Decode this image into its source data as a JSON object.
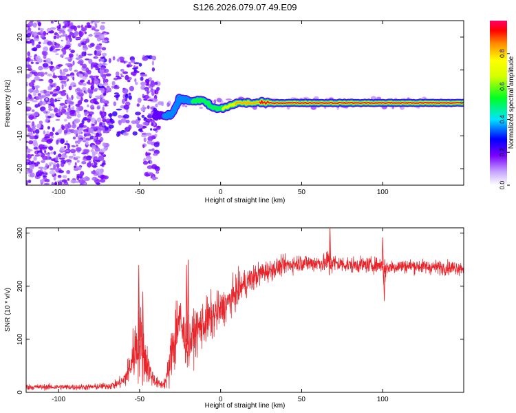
{
  "figure_title": "S126.2026.079.07.49.E09",
  "colors": {
    "snr_line": "#e8252b",
    "frame": "#000000",
    "background": "#ffffff"
  },
  "chart_data": [
    {
      "type": "heatmap",
      "title": "S126.2026.079.07.49.E09",
      "xlabel": "Height of straight line (km)",
      "ylabel": "Frequency (Hz)",
      "xlim": [
        -120,
        150
      ],
      "ylim": [
        -25,
        25
      ],
      "xticks": [
        -100,
        -50,
        0,
        50,
        100
      ],
      "xtick_labels": [
        "-100",
        "-50",
        "0",
        "50",
        "100"
      ],
      "yticks": [
        -20,
        -10,
        0,
        10,
        20
      ],
      "ytick_labels": [
        "-20",
        "-10",
        "0",
        "10",
        "20"
      ],
      "grid": false,
      "description_of_signal": "Scattered low-amplitude noise for heights below about -40 km; a coherent line near 0 Hz from about -40 km upward, reaching normalized amplitude ~1 above about 20 km",
      "ridge": {
        "x": [
          -40,
          -35,
          -30,
          -25,
          -20,
          -15,
          -10,
          -5,
          0,
          5,
          10,
          20,
          30,
          50,
          70,
          100,
          150
        ],
        "frequency_hz": [
          -3.5,
          -3.8,
          -3.5,
          1.5,
          0.5,
          0.8,
          0.5,
          -1.5,
          -1.8,
          -1.0,
          0,
          0,
          0,
          0,
          0,
          0,
          0
        ],
        "amplitude": [
          0.25,
          0.3,
          0.3,
          0.35,
          0.4,
          0.5,
          0.55,
          0.6,
          0.6,
          0.7,
          0.8,
          0.9,
          0.95,
          1.0,
          1.0,
          1.0,
          1.0
        ]
      },
      "colorbar": {
        "label": "Normalized spectral amplitude",
        "range": [
          0,
          1
        ],
        "ticks": [
          0.0,
          0.2,
          0.4,
          0.6,
          0.8
        ],
        "tick_labels": [
          "0.0",
          "0.2",
          "0.4",
          "0.6",
          "0.8"
        ]
      }
    },
    {
      "type": "line",
      "xlabel": "Height of straight line (km)",
      "ylabel": "SNR (10 * v/v)",
      "xlim": [
        -120,
        150
      ],
      "ylim": [
        0,
        310
      ],
      "xticks": [
        -100,
        -50,
        0,
        50,
        100
      ],
      "xtick_labels": [
        "-100",
        "-50",
        "0",
        "50",
        "100"
      ],
      "yticks": [
        0,
        100,
        200,
        300
      ],
      "ytick_labels": [
        "0",
        "100",
        "200",
        "300"
      ],
      "grid": false,
      "series": [
        {
          "name": "SNR",
          "x": [
            -120,
            -100,
            -80,
            -70,
            -65,
            -60,
            -57,
            -55,
            -52,
            -50,
            -48,
            -46,
            -44,
            -42,
            -40,
            -38,
            -36,
            -34,
            -32,
            -30,
            -28,
            -26,
            -24,
            -22,
            -20,
            -18,
            -16,
            -14,
            -12,
            -10,
            -8,
            -6,
            -4,
            -2,
            0,
            5,
            10,
            15,
            20,
            25,
            30,
            35,
            40,
            45,
            50,
            55,
            60,
            65,
            67,
            70,
            75,
            80,
            90,
            100,
            101,
            102,
            110,
            120,
            130,
            140,
            150
          ],
          "mean": [
            10,
            10,
            10,
            12,
            14,
            22,
            38,
            60,
            90,
            100,
            80,
            60,
            40,
            28,
            20,
            15,
            15,
            20,
            40,
            80,
            110,
            140,
            120,
            100,
            90,
            100,
            110,
            120,
            125,
            130,
            135,
            140,
            145,
            150,
            155,
            170,
            190,
            205,
            215,
            225,
            230,
            235,
            240,
            242,
            245,
            243,
            244,
            243,
            250,
            243,
            242,
            240,
            240,
            240,
            220,
            235,
            238,
            238,
            236,
            235,
            235
          ],
          "spread": [
            5,
            5,
            5,
            6,
            7,
            12,
            25,
            40,
            60,
            70,
            60,
            40,
            25,
            15,
            10,
            8,
            8,
            12,
            30,
            50,
            70,
            60,
            50,
            40,
            40,
            40,
            40,
            40,
            40,
            40,
            40,
            40,
            35,
            35,
            30,
            30,
            28,
            25,
            22,
            20,
            18,
            16,
            15,
            15,
            15,
            15,
            15,
            15,
            40,
            15,
            14,
            13,
            13,
            13,
            40,
            13,
            12,
            12,
            12,
            12,
            12
          ],
          "peaks": [
            {
              "x": -50.5,
              "y": 240
            },
            {
              "x": -48,
              "y": 190
            },
            {
              "x": -20,
              "y": 250
            },
            {
              "x": -21,
              "y": 240
            },
            {
              "x": 67.5,
              "y": 312
            },
            {
              "x": 100,
              "y": 292
            },
            {
              "x": 101,
              "y": 172
            }
          ]
        }
      ]
    }
  ]
}
